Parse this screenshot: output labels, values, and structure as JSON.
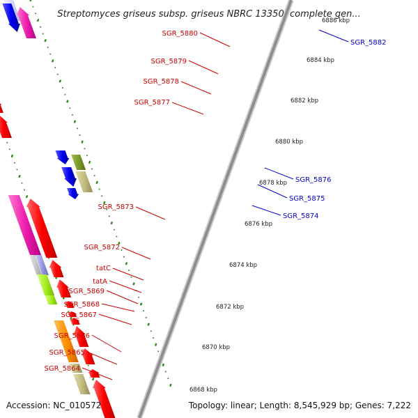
{
  "title": "Streptomyces griseus subsp. griseus NBRC 13350, complete gen...",
  "footer": {
    "accession": "Accession: NC_010572",
    "topology": "Topology: linear; Length: 8,545,929 bp; Genes: 7,222"
  },
  "kbp_ticks": [
    "6886 kbp",
    "6884 kbp",
    "6882 kbp",
    "6880 kbp",
    "6878 kbp",
    "6876 kbp",
    "6874 kbp",
    "6872 kbp",
    "6870 kbp",
    "6868 kbp"
  ],
  "left_labels": [
    "SGR_5880",
    "SGR_5879",
    "SGR_5878",
    "SGR_5877",
    "SGR_5873",
    "SGR_5872",
    "tatC",
    "tatA",
    "SGR_5869",
    "SGR_5868",
    "SGR_5867",
    "SGR_5866",
    "SGR_5865",
    "SGR_5864"
  ],
  "right_labels": [
    "SGR_5882",
    "SGR_5876",
    "SGR_5875",
    "SGR_5874"
  ],
  "colors": {
    "cds": "#ff0000",
    "left_label": "#cc0000",
    "right_label": "#0000cc",
    "backbone": "#999999",
    "ticks": "#2d8a1a"
  }
}
